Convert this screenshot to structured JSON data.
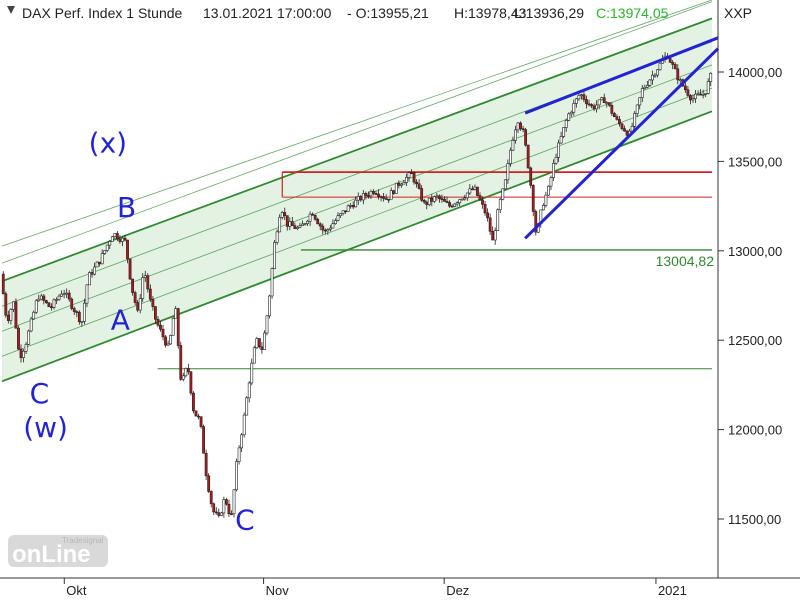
{
  "header": {
    "instrument": "DAX Perf. Index 1 Stunde",
    "datetime": "13.01.2021 17:00:00",
    "open": "O:13955,21",
    "high": "H:13978,43",
    "low": "L:13936,29",
    "close": "C:13974,05",
    "exchange": "XXP"
  },
  "colors": {
    "channel_fill": "#d9eed9",
    "channel_line": "#2e8b2e",
    "resistance": "#d32222",
    "support": "#2e8b2e",
    "wedge": "#2323d6",
    "wave_labels": "#2323d6",
    "candle_up": "#ffffff",
    "candle_down": "#b01818",
    "wick": "#222222"
  },
  "logo": {
    "main": "onLine",
    "sub": "Tradesignal"
  },
  "chart_data": {
    "type": "candlestick",
    "title": "DAX Perf. Index 1 Stunde",
    "y_axis": {
      "ticks": [
        11500,
        12000,
        12500,
        13000,
        13500,
        14000
      ],
      "tick_labels": [
        "11500,00",
        "12000,00",
        "12500,00",
        "13000,00",
        "13500,00",
        "14000,00"
      ],
      "range": [
        11300,
        14250
      ]
    },
    "x_axis": {
      "labels": [
        "Okt",
        "Nov",
        "Dez",
        "2021"
      ],
      "range": [
        "2020-09-21",
        "2021-01-13"
      ]
    },
    "horizontal_levels": [
      {
        "name": "resistance",
        "value": 13300,
        "color": "#d32222"
      },
      {
        "name": "box-top",
        "value": 13440,
        "color": "#d32222"
      },
      {
        "name": "support",
        "value": 13004.82,
        "label": "13004,82",
        "color": "#2e8b2e"
      },
      {
        "name": "low-line",
        "value": 12340,
        "color": "#2e8b2e"
      }
    ],
    "trend_channel": {
      "lower": [
        {
          "x": "2020-09-21",
          "y": 12270
        },
        {
          "x": "2021-01-13",
          "y": 13780
        }
      ],
      "upper": [
        {
          "x": "2020-09-21",
          "y": 12830
        },
        {
          "x": "2021-01-13",
          "y": 14300
        }
      ]
    },
    "wedge_lines": [
      [
        {
          "x": "2020-12-14",
          "y": 13070
        },
        {
          "x": "2021-01-13",
          "y": 14120
        }
      ],
      [
        {
          "x": "2020-12-14",
          "y": 13770
        },
        {
          "x": "2021-01-13",
          "y": 14180
        }
      ]
    ],
    "wave_labels": [
      {
        "text": "(x)",
        "x": "2020-10-08",
        "y": 13550
      },
      {
        "text": "B",
        "x": "2020-10-11",
        "y": 13190
      },
      {
        "text": "A",
        "x": "2020-10-10",
        "y": 12560
      },
      {
        "text": "C",
        "x": "2020-09-27",
        "y": 12150
      },
      {
        "text": "(w)",
        "x": "2020-09-28",
        "y": 11960
      },
      {
        "text": "C",
        "x": "2020-10-30",
        "y": 11440
      }
    ],
    "price_path": [
      [
        "2020-09-21",
        12870
      ],
      [
        "2020-09-22",
        12600
      ],
      [
        "2020-09-23",
        12720
      ],
      [
        "2020-09-24",
        12400
      ],
      [
        "2020-09-25",
        12480
      ],
      [
        "2020-09-27",
        12750
      ],
      [
        "2020-09-29",
        12680
      ],
      [
        "2020-10-01",
        12780
      ],
      [
        "2020-10-04",
        12600
      ],
      [
        "2020-10-05",
        12850
      ],
      [
        "2020-10-07",
        12950
      ],
      [
        "2020-10-09",
        13100
      ],
      [
        "2020-10-11",
        13050
      ],
      [
        "2020-10-12",
        12800
      ],
      [
        "2020-10-13",
        12650
      ],
      [
        "2020-10-14",
        12900
      ],
      [
        "2020-10-15",
        12720
      ],
      [
        "2020-10-16",
        12600
      ],
      [
        "2020-10-18",
        12450
      ],
      [
        "2020-10-19",
        12700
      ],
      [
        "2020-10-20",
        12250
      ],
      [
        "2020-10-21",
        12360
      ],
      [
        "2020-10-22",
        12100
      ],
      [
        "2020-10-23",
        12050
      ],
      [
        "2020-10-24",
        11750
      ],
      [
        "2020-10-25",
        11550
      ],
      [
        "2020-10-26",
        11500
      ],
      [
        "2020-10-27",
        11620
      ],
      [
        "2020-10-28",
        11500
      ],
      [
        "2020-10-29",
        11850
      ],
      [
        "2020-10-30",
        12050
      ],
      [
        "2020-10-31",
        12300
      ],
      [
        "2020-11-01",
        12500
      ],
      [
        "2020-11-02",
        12450
      ],
      [
        "2020-11-03",
        12700
      ],
      [
        "2020-11-04",
        13050
      ],
      [
        "2020-11-05",
        13250
      ],
      [
        "2020-11-06",
        13150
      ],
      [
        "2020-11-08",
        13120
      ],
      [
        "2020-11-10",
        13220
      ],
      [
        "2020-11-12",
        13100
      ],
      [
        "2020-11-14",
        13180
      ],
      [
        "2020-11-16",
        13250
      ],
      [
        "2020-11-18",
        13300
      ],
      [
        "2020-11-20",
        13340
      ],
      [
        "2020-11-22",
        13290
      ],
      [
        "2020-11-24",
        13380
      ],
      [
        "2020-11-26",
        13430
      ],
      [
        "2020-11-28",
        13260
      ],
      [
        "2020-11-30",
        13300
      ],
      [
        "2020-12-02",
        13250
      ],
      [
        "2020-12-04",
        13300
      ],
      [
        "2020-12-06",
        13350
      ],
      [
        "2020-12-08",
        13200
      ],
      [
        "2020-12-09",
        13050
      ],
      [
        "2020-12-10",
        13250
      ],
      [
        "2020-12-11",
        13380
      ],
      [
        "2020-12-12",
        13600
      ],
      [
        "2020-12-13",
        13740
      ],
      [
        "2020-12-14",
        13650
      ],
      [
        "2020-12-15",
        13400
      ],
      [
        "2020-12-16",
        13080
      ],
      [
        "2020-12-17",
        13260
      ],
      [
        "2020-12-18",
        13350
      ],
      [
        "2020-12-19",
        13520
      ],
      [
        "2020-12-21",
        13750
      ],
      [
        "2020-12-23",
        13880
      ],
      [
        "2020-12-25",
        13800
      ],
      [
        "2020-12-27",
        13850
      ],
      [
        "2020-12-29",
        13720
      ],
      [
        "2020-12-31",
        13650
      ],
      [
        "2021-01-02",
        13900
      ],
      [
        "2021-01-04",
        14000
      ],
      [
        "2021-01-06",
        14100
      ],
      [
        "2021-01-08",
        13950
      ],
      [
        "2021-01-10",
        13850
      ],
      [
        "2021-01-12",
        13880
      ],
      [
        "2021-01-13",
        13974
      ]
    ]
  }
}
